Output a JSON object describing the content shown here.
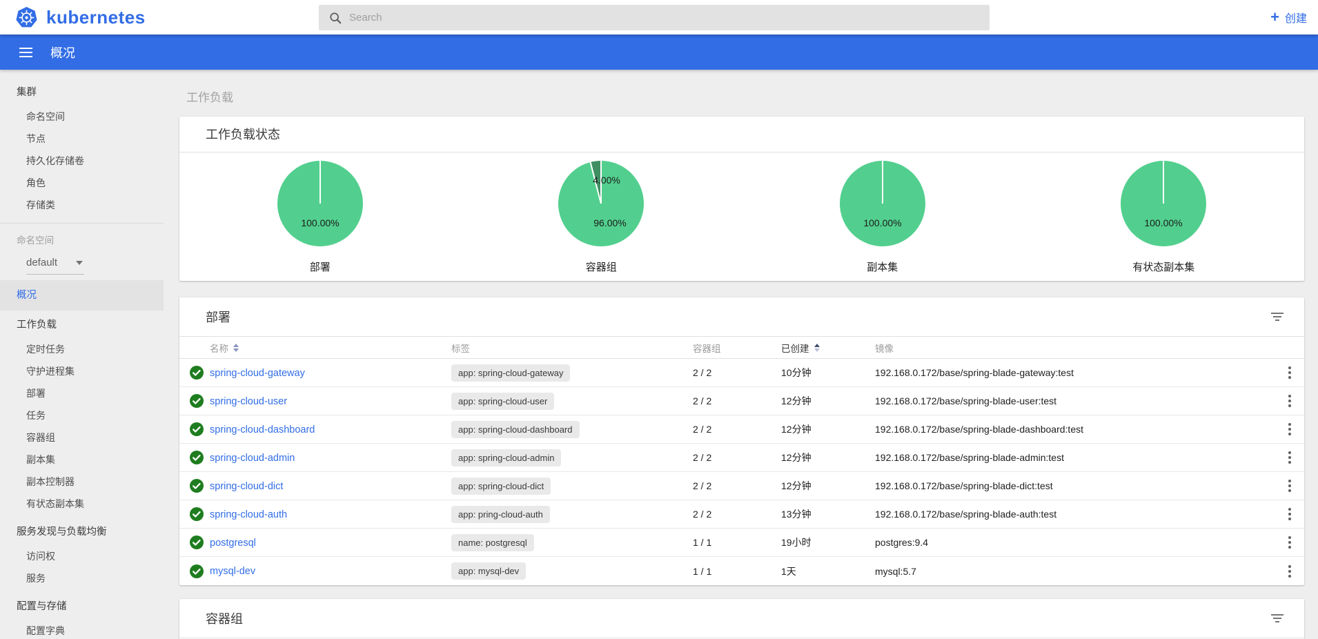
{
  "topbar": {
    "brand": "kubernetes",
    "search_placeholder": "Search",
    "create_label": "创建",
    "create_plus": "+"
  },
  "appbar": {
    "title": "概况"
  },
  "sidebar": {
    "items": [
      {
        "type": "header",
        "label": "集群"
      },
      {
        "type": "item",
        "label": "命名空间"
      },
      {
        "type": "item",
        "label": "节点"
      },
      {
        "type": "item",
        "label": "持久化存储卷"
      },
      {
        "type": "item",
        "label": "角色"
      },
      {
        "type": "item",
        "label": "存储类"
      },
      {
        "type": "divider"
      },
      {
        "type": "caption",
        "label": "命名空间"
      },
      {
        "type": "dropdown",
        "label": "default"
      },
      {
        "type": "selected",
        "label": "概况"
      },
      {
        "type": "header",
        "label": "工作负载"
      },
      {
        "type": "item",
        "label": "定时任务"
      },
      {
        "type": "item",
        "label": "守护进程集"
      },
      {
        "type": "item",
        "label": "部署"
      },
      {
        "type": "item",
        "label": "任务"
      },
      {
        "type": "item",
        "label": "容器组"
      },
      {
        "type": "item",
        "label": "副本集"
      },
      {
        "type": "item",
        "label": "副本控制器"
      },
      {
        "type": "item",
        "label": "有状态副本集"
      },
      {
        "type": "header",
        "label": "服务发现与负载均衡"
      },
      {
        "type": "item",
        "label": "访问权"
      },
      {
        "type": "item",
        "label": "服务"
      },
      {
        "type": "header",
        "label": "配置与存储"
      },
      {
        "type": "item",
        "label": "配置字典"
      }
    ]
  },
  "main": {
    "section_title": "工作负载"
  },
  "colors": {
    "accent": "#326de6",
    "pie_green": "#52cf8e",
    "pie_dark_green": "#3f8f63",
    "success_green": "#1e7d1e"
  },
  "workload_status": {
    "card_title": "工作负载状态"
  },
  "chart_data": [
    {
      "type": "pie",
      "title": "部署",
      "slices": [
        {
          "label": "100.00%",
          "value": 100.0,
          "color": "#52cf8e"
        }
      ]
    },
    {
      "type": "pie",
      "title": "容器组",
      "slices": [
        {
          "label": "96.00%",
          "value": 96.0,
          "color": "#52cf8e"
        },
        {
          "label": "4.00%",
          "value": 4.0,
          "color": "#3f8f63"
        }
      ]
    },
    {
      "type": "pie",
      "title": "副本集",
      "slices": [
        {
          "label": "100.00%",
          "value": 100.0,
          "color": "#52cf8e"
        }
      ]
    },
    {
      "type": "pie",
      "title": "有状态副本集",
      "slices": [
        {
          "label": "100.00%",
          "value": 100.0,
          "color": "#52cf8e"
        }
      ]
    }
  ],
  "deployments": {
    "card_title": "部署",
    "columns": {
      "name": "名称",
      "labels": "标签",
      "pods": "容器组",
      "created": "已创建",
      "images": "镜像"
    },
    "rows": [
      {
        "name": "spring-cloud-gateway",
        "label": "app: spring-cloud-gateway",
        "pods": "2 / 2",
        "created": "10分钟",
        "image": "192.168.0.172/base/spring-blade-gateway:test"
      },
      {
        "name": "spring-cloud-user",
        "label": "app: spring-cloud-user",
        "pods": "2 / 2",
        "created": "12分钟",
        "image": "192.168.0.172/base/spring-blade-user:test"
      },
      {
        "name": "spring-cloud-dashboard",
        "label": "app: spring-cloud-dashboard",
        "pods": "2 / 2",
        "created": "12分钟",
        "image": "192.168.0.172/base/spring-blade-dashboard:test"
      },
      {
        "name": "spring-cloud-admin",
        "label": "app: spring-cloud-admin",
        "pods": "2 / 2",
        "created": "12分钟",
        "image": "192.168.0.172/base/spring-blade-admin:test"
      },
      {
        "name": "spring-cloud-dict",
        "label": "app: spring-cloud-dict",
        "pods": "2 / 2",
        "created": "12分钟",
        "image": "192.168.0.172/base/spring-blade-dict:test"
      },
      {
        "name": "spring-cloud-auth",
        "label": "app: pring-cloud-auth",
        "pods": "2 / 2",
        "created": "13分钟",
        "image": "192.168.0.172/base/spring-blade-auth:test"
      },
      {
        "name": "postgresql",
        "label": "name: postgresql",
        "pods": "1 / 1",
        "created": "19小时",
        "image": "postgres:9.4"
      },
      {
        "name": "mysql-dev",
        "label": "app: mysql-dev",
        "pods": "1 / 1",
        "created": "1天",
        "image": "mysql:5.7"
      }
    ]
  },
  "pods_card": {
    "card_title": "容器组"
  }
}
